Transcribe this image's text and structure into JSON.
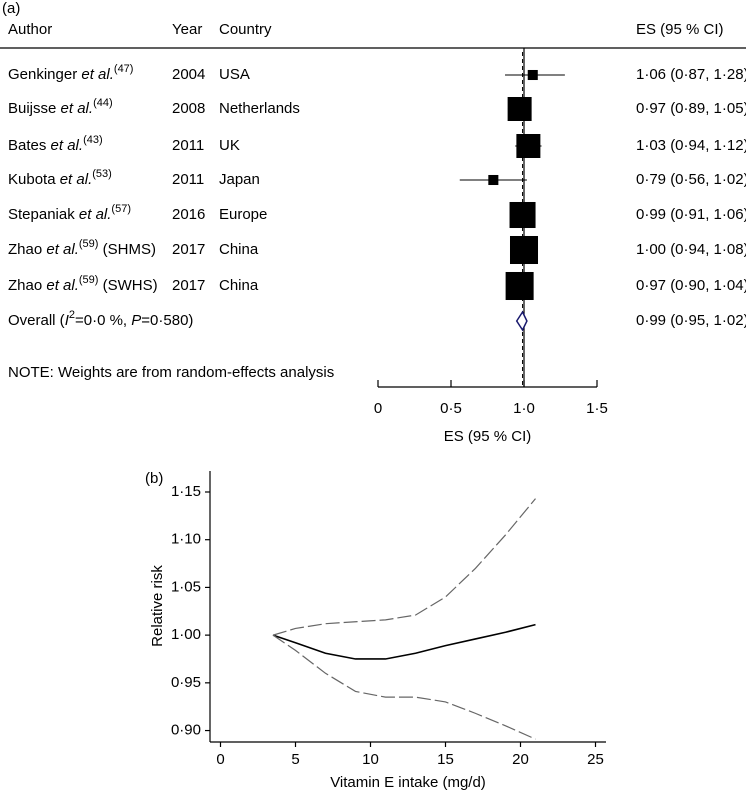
{
  "chart_data": [
    {
      "type": "forest",
      "panel": "(a)",
      "columns": [
        "Author",
        "Year",
        "Country",
        "ES (95 % CI)"
      ],
      "authors": [
        [
          {
            "text": "Genkinger "
          },
          {
            "text": "et al.",
            "style": "italic"
          },
          {
            "text": "(47)",
            "style": "sup"
          }
        ],
        [
          {
            "text": "Buijsse "
          },
          {
            "text": "et al.",
            "style": "italic"
          },
          {
            "text": "(44)",
            "style": "sup"
          }
        ],
        [
          {
            "text": "Bates "
          },
          {
            "text": "et al.",
            "style": "italic"
          },
          {
            "text": "(43)",
            "style": "sup"
          }
        ],
        [
          {
            "text": "Kubota "
          },
          {
            "text": "et al.",
            "style": "italic"
          },
          {
            "text": "(53)",
            "style": "sup"
          }
        ],
        [
          {
            "text": "Stepaniak "
          },
          {
            "text": "et al.",
            "style": "italic"
          },
          {
            "text": "(57)",
            "style": "sup"
          }
        ],
        [
          {
            "text": "Zhao "
          },
          {
            "text": "et al.",
            "style": "italic"
          },
          {
            "text": "(59)",
            "style": "sup"
          },
          {
            "text": " (SHMS)"
          }
        ],
        [
          {
            "text": "Zhao "
          },
          {
            "text": "et al.",
            "style": "italic"
          },
          {
            "text": "(59)",
            "style": "sup"
          },
          {
            "text": " (SWHS)"
          }
        ]
      ],
      "years": [
        2004,
        2008,
        2011,
        2011,
        2016,
        2017,
        2017
      ],
      "countries": [
        "USA",
        "Netherlands",
        "UK",
        "Japan",
        "Europe",
        "China",
        "China"
      ],
      "values": [
        1.06,
        0.97,
        1.03,
        0.79,
        0.99,
        1.0,
        0.97
      ],
      "lower": [
        0.87,
        0.89,
        0.94,
        0.56,
        0.91,
        0.94,
        0.9
      ],
      "upper": [
        1.28,
        1.05,
        1.12,
        1.02,
        1.06,
        1.08,
        1.04
      ],
      "weights": [
        2.8,
        16,
        16,
        2.8,
        18.8,
        21.8,
        21.8
      ],
      "value_labels": [
        "1·06 (0·87, 1·28)",
        "0·97 (0·89, 1·05)",
        "1·03 (0·94, 1·12)",
        "0·79 (0·56, 1·02)",
        "0·99 (0·91, 1·06)",
        "1·00 (0·94, 1·08)",
        "0·97 (0·90, 1·04)"
      ],
      "overall": {
        "label": [
          {
            "text": "Overall ("
          },
          {
            "text": "I",
            "style": "italic"
          },
          {
            "text": "2",
            "style": "sup"
          },
          {
            "text": "=0·0 %, "
          },
          {
            "text": "P",
            "style": "italic"
          },
          {
            "text": "=0·580)"
          }
        ],
        "value": 0.99,
        "lower": 0.95,
        "upper": 1.02,
        "value_label": "0·99 (0·95, 1·02)"
      },
      "note": "NOTE: Weights are from random-effects analysis",
      "null_line": 1,
      "xlim": [
        0,
        1.5
      ],
      "xticks": [
        0,
        {
          "value": 0.5,
          "label": "0·5"
        },
        {
          "value": 1,
          "label": "1·0"
        },
        {
          "value": 1.5,
          "label": "1·5"
        }
      ],
      "xlabel": "ES (95 % CI)",
      "color": "#000000",
      "diamond_color": "#1a1a6e"
    },
    {
      "type": "line",
      "panel": "(b)",
      "xlabel": "Vitamin E intake (mg/d)",
      "ylabel": "Relative risk",
      "x": [
        3.5,
        5,
        7,
        9,
        11,
        13,
        15,
        17,
        19,
        21
      ],
      "series": [
        {
          "color": "#000000",
          "dash": false,
          "values": [
            1.0,
            0.992,
            0.981,
            0.975,
            0.975,
            0.981,
            0.989,
            0.996,
            1.003,
            1.011
          ]
        },
        {
          "color": "#666666",
          "dash": true,
          "values": [
            1.0,
            1.007,
            1.012,
            1.014,
            1.016,
            1.021,
            1.04,
            1.07,
            1.105,
            1.143
          ]
        },
        {
          "color": "#666666",
          "dash": true,
          "values": [
            1.0,
            0.984,
            0.96,
            0.941,
            0.935,
            0.935,
            0.93,
            0.918,
            0.905,
            0.891
          ]
        }
      ],
      "xlim": [
        -0.7,
        25.7
      ],
      "xticks": [
        0,
        5,
        10,
        15,
        20,
        25
      ],
      "ylim": [
        0.888,
        1.172
      ],
      "yticks": [
        {
          "value": 0.9,
          "label": "0·90"
        },
        {
          "value": 0.95,
          "label": "0·95"
        },
        {
          "value": 1.0,
          "label": "1·00"
        },
        {
          "value": 1.05,
          "label": "1·05"
        },
        {
          "value": 1.1,
          "label": "1·10"
        },
        {
          "value": 1.15,
          "label": "1·15"
        }
      ]
    }
  ]
}
